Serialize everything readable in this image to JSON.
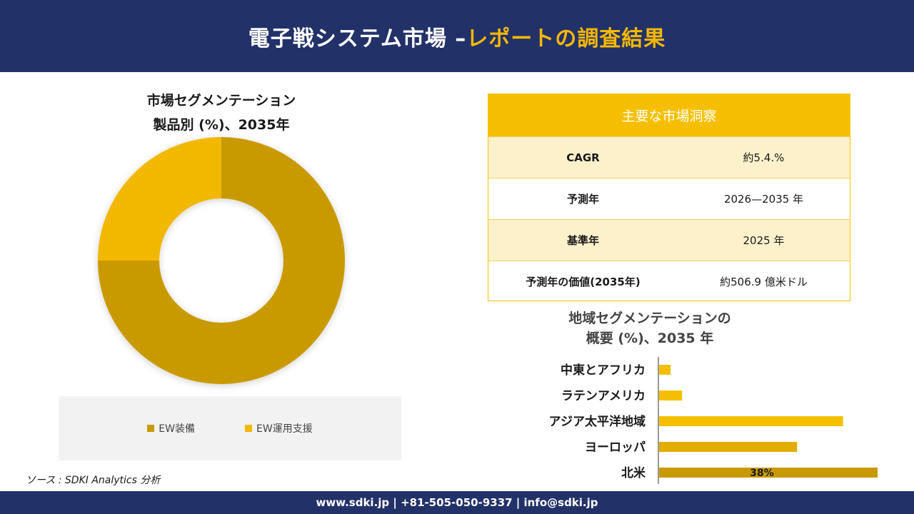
{
  "header": {
    "title_main": "電子戦システム市場 –",
    "title_accent": "レポートの調査結果"
  },
  "colors": {
    "header_bg": "#233169",
    "accent": "#f5b800",
    "ew_equipment": "#c99a00",
    "ew_support": "#f2b800"
  },
  "donut_title": {
    "line1": "市場セグメンテーション",
    "line2": "製品別 (%)、2035年"
  },
  "insights": {
    "header": "主要な市場洞察",
    "rows": [
      {
        "label": "CAGR",
        "value": "約5.4.%"
      },
      {
        "label": "予測年",
        "value": "2026—2035 年"
      },
      {
        "label": "基準年",
        "value": "2025 年"
      },
      {
        "label": "予測年の価値(2035年)",
        "value": "約506.9 億米ドル"
      }
    ]
  },
  "bar_title": {
    "line1": "地域セグメンテーションの",
    "line2": "概要 (%)、2035 年"
  },
  "source": "ソース : SDKI Analytics 分析",
  "footer": {
    "text": "www.sdki.jp | +81-505-050-9337 | info@sdki.jp"
  },
  "chart_data": [
    {
      "type": "pie",
      "donut": true,
      "labels": [
        "EW装備",
        "EW運用支援"
      ],
      "values": [
        75,
        25
      ],
      "colors": [
        "#c99a00",
        "#f2b800"
      ],
      "legend": "bottom"
    },
    {
      "type": "bar",
      "orientation": "horizontal",
      "categories": [
        "中東とアフリカ",
        "ラテンアメリカ",
        "アジア太平洋地域",
        "ヨーロッパ",
        "北米"
      ],
      "values": [
        2,
        4,
        32,
        24,
        38
      ],
      "colors": [
        "#f5bf00",
        "#f5bf00",
        "#f5bf00",
        "#e0ad00",
        "#c99a00"
      ],
      "data_labels": [
        "",
        "",
        "",
        "",
        "38%"
      ]
    }
  ]
}
